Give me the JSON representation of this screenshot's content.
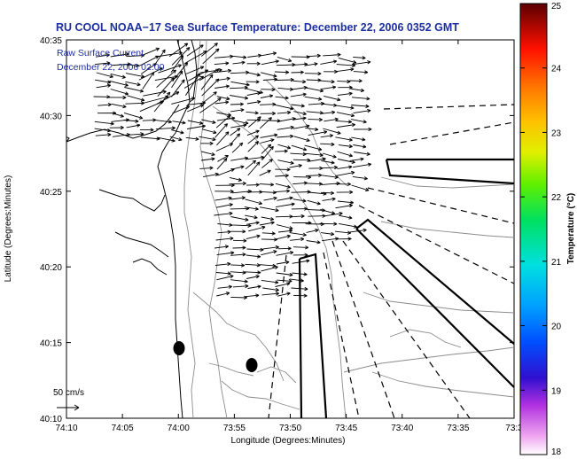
{
  "map": {
    "title": "RU COOL  NOAA−17  Sea Surface Temperature:  December 22, 2006 0352 GMT",
    "legend_line1": "Raw Surface Current",
    "legend_line2": "December 22, 2006 02:00",
    "x_label": "Longitude (Degrees:Minutes)",
    "y_label": "Latitude (Degrees:Minutes)",
    "x_ticks": [
      "74:10",
      "74:05",
      "74:00",
      "73:55",
      "73:50",
      "73:45",
      "73:40",
      "73:35",
      "73:3"
    ],
    "y_ticks": [
      "40:35",
      "40:30",
      "40:25",
      "40:20",
      "40:15",
      "40:10"
    ],
    "scale_label": "50 cm/s",
    "colorbar": {
      "label": "Temperature (°C)",
      "ticks": [
        "25",
        "24",
        "23",
        "22",
        "21",
        "20",
        "19",
        "18"
      ],
      "range": [
        18,
        25
      ]
    },
    "colors": {
      "title": "#1f2f9e",
      "coast": "#000000",
      "bathymetry": "#8c8c8c",
      "arrows": "#000000"
    }
  }
}
